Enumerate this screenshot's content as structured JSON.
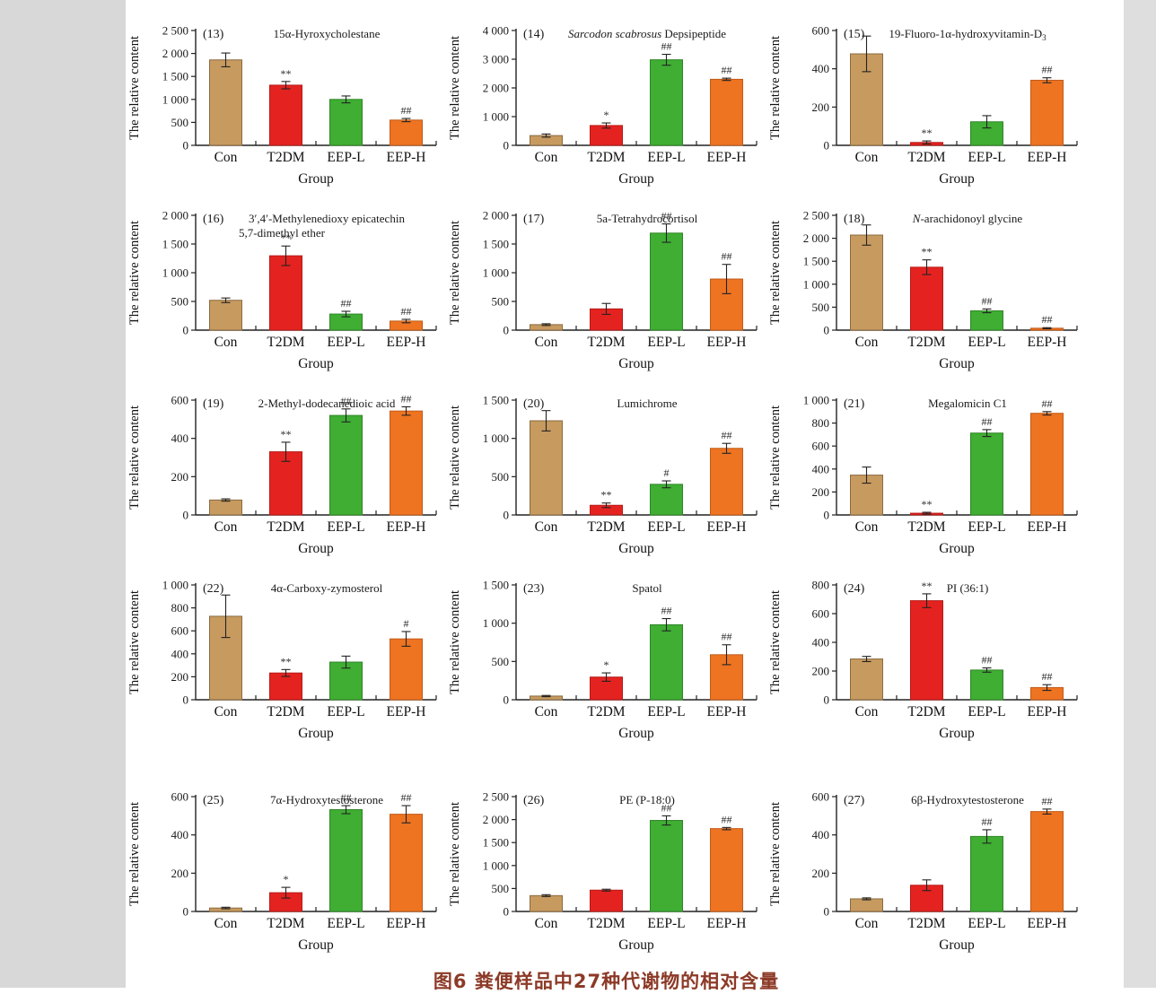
{
  "page": {
    "caption": "图6  粪便样品中27种代谢物的相对含量",
    "caption_color": "#8c3a27",
    "background": "#ffffff"
  },
  "shared": {
    "ylabel": "The relative content",
    "xlabel": "Group",
    "categories": [
      "Con",
      "T2DM",
      "EEP-L",
      "EEP-H"
    ],
    "bar_colors": [
      "#C79A5F",
      "#E42320",
      "#3FAE33",
      "#EE7422"
    ],
    "bar_borders": [
      "#8a6b40",
      "#b51a16",
      "#2f8526",
      "#c05a18"
    ],
    "axis_color": "#222222",
    "grid": "off",
    "legend": "none",
    "error_bars": true,
    "significance_note": "* ** vs Con, # ## vs T2DM"
  },
  "chart_data": [
    {
      "type": "bar",
      "panel": "(13)",
      "title_text": "15α-Hyroxycholestane",
      "title_segments": [
        {
          "t": "15α-Hyroxycholestane"
        }
      ],
      "ylim": [
        0,
        2500
      ],
      "ytick_step": 500,
      "values": [
        1860,
        1310,
        1000,
        550
      ],
      "errors": [
        150,
        80,
        75,
        35
      ],
      "sig_markers": [
        "",
        "**",
        "",
        "##"
      ]
    },
    {
      "type": "bar",
      "panel": "(14)",
      "title_text": "Sarcodon scabrosus Depsipeptide",
      "title_segments": [
        {
          "t": "Sarcodon scabrosus",
          "i": true
        },
        {
          "t": " Depsipeptide"
        }
      ],
      "ylim": [
        0,
        4000
      ],
      "ytick_step": 1000,
      "values": [
        340,
        690,
        2980,
        2300
      ],
      "errors": [
        55,
        90,
        190,
        40
      ],
      "sig_markers": [
        "",
        "*",
        "##",
        "##"
      ]
    },
    {
      "type": "bar",
      "panel": "(15)",
      "title_text": "19-Fluoro-1α-hydroxyvitamin-D3",
      "title_segments": [
        {
          "t": "19-Fluoro-1α-hydroxyvitamin-D"
        },
        {
          "t": "3",
          "sub": true
        }
      ],
      "ylim": [
        0,
        600
      ],
      "ytick_step": 200,
      "values": [
        478,
        15,
        123,
        340
      ],
      "errors": [
        93,
        8,
        32,
        13
      ],
      "sig_markers": [
        "",
        "**",
        "",
        "##"
      ]
    },
    {
      "type": "bar",
      "panel": "(16)",
      "title_text": "3′,4′-Methylenedioxy epicatechin 5,7-dimethyl ether",
      "title_segments": [
        {
          "t": "3′,4′-Methylenedioxy epicatechin"
        }
      ],
      "title_text2": "5,7-dimethyl ether",
      "ylim": [
        0,
        2000
      ],
      "ytick_step": 500,
      "values": [
        520,
        1295,
        280,
        158
      ],
      "errors": [
        40,
        170,
        48,
        30
      ],
      "sig_markers": [
        "",
        "**",
        "##",
        "##"
      ]
    },
    {
      "type": "bar",
      "panel": "(17)",
      "title_text": "5a-Tetrahydrocortisol",
      "title_segments": [
        {
          "t": "5a-Tetrahydrocortisol"
        }
      ],
      "ylim": [
        0,
        2000
      ],
      "ytick_step": 500,
      "values": [
        96,
        370,
        1690,
        890
      ],
      "errors": [
        15,
        95,
        160,
        255
      ],
      "sig_markers": [
        "",
        "",
        "##",
        "##"
      ]
    },
    {
      "type": "bar",
      "panel": "(18)",
      "title_text": "N-arachidonoyl glycine",
      "title_segments": [
        {
          "t": "N",
          "i": true
        },
        {
          "t": "-arachidonoyl glycine"
        }
      ],
      "ylim": [
        0,
        2500
      ],
      "ytick_step": 500,
      "values": [
        2070,
        1370,
        420,
        42
      ],
      "errors": [
        220,
        160,
        40,
        12
      ],
      "sig_markers": [
        "",
        "**",
        "##",
        "##"
      ]
    },
    {
      "type": "bar",
      "panel": "(19)",
      "title_text": "2-Methyl-dodecanedioic acid",
      "title_segments": [
        {
          "t": "2-Methyl-dodecanedioic acid"
        }
      ],
      "ylim": [
        0,
        600
      ],
      "ytick_step": 200,
      "values": [
        78,
        330,
        520,
        543
      ],
      "errors": [
        6,
        50,
        34,
        22
      ],
      "sig_markers": [
        "",
        "**",
        "##",
        "##"
      ]
    },
    {
      "type": "bar",
      "panel": "(20)",
      "title_text": "Lumichrome",
      "title_segments": [
        {
          "t": "Lumichrome"
        }
      ],
      "ylim": [
        0,
        1500
      ],
      "ytick_step": 500,
      "values": [
        1230,
        126,
        400,
        870
      ],
      "errors": [
        133,
        30,
        45,
        65
      ],
      "sig_markers": [
        "",
        "**",
        "#",
        "##"
      ]
    },
    {
      "type": "bar",
      "panel": "(21)",
      "title_text": "Megalomicin C1",
      "title_segments": [
        {
          "t": "Megalomicin C1"
        }
      ],
      "ylim": [
        0,
        1000
      ],
      "ytick_step": 200,
      "values": [
        347,
        15,
        713,
        885
      ],
      "errors": [
        70,
        8,
        30,
        15
      ],
      "sig_markers": [
        "",
        "**",
        "##",
        "##"
      ]
    },
    {
      "type": "bar",
      "panel": "(22)",
      "title_text": "4α-Carboxy-zymosterol",
      "title_segments": [
        {
          "t": "4α-Carboxy-zymosterol"
        }
      ],
      "ylim": [
        0,
        1000
      ],
      "ytick_step": 200,
      "values": [
        727,
        233,
        328,
        530
      ],
      "errors": [
        185,
        30,
        52,
        64
      ],
      "sig_markers": [
        "",
        "**",
        "",
        "#"
      ]
    },
    {
      "type": "bar",
      "panel": "(23)",
      "title_text": "Spatol",
      "title_segments": [
        {
          "t": "Spatol"
        }
      ],
      "ylim": [
        0,
        1500
      ],
      "ytick_step": 500,
      "values": [
        48,
        296,
        980,
        588
      ],
      "errors": [
        8,
        55,
        80,
        130
      ],
      "sig_markers": [
        "",
        "*",
        "##",
        "##"
      ]
    },
    {
      "type": "bar",
      "panel": "(24)",
      "title_text": "PI (36:1)",
      "title_segments": [
        {
          "t": "PI (36:1)"
        }
      ],
      "ylim": [
        0,
        800
      ],
      "ytick_step": 200,
      "values": [
        284,
        690,
        207,
        85
      ],
      "errors": [
        18,
        48,
        15,
        20
      ],
      "sig_markers": [
        "",
        "**",
        "##",
        "##"
      ]
    },
    {
      "type": "bar",
      "panel": "(25)",
      "title_text": "7α-Hydroxytestosterone",
      "title_segments": [
        {
          "t": "7α-Hydroxytestosterone"
        }
      ],
      "ylim": [
        0,
        600
      ],
      "ytick_step": 200,
      "values": [
        18,
        98,
        532,
        508
      ],
      "errors": [
        4,
        28,
        21,
        45
      ],
      "sig_markers": [
        "",
        "*",
        "##",
        "##"
      ]
    },
    {
      "type": "bar",
      "panel": "(26)",
      "title_text": "PE (P-18:0)",
      "title_segments": [
        {
          "t": "PE (P-18:0)"
        }
      ],
      "ylim": [
        0,
        2500
      ],
      "ytick_step": 500,
      "values": [
        345,
        464,
        1982,
        1804
      ],
      "errors": [
        20,
        20,
        100,
        25
      ],
      "sig_markers": [
        "",
        "",
        "##",
        "##"
      ]
    },
    {
      "type": "bar",
      "panel": "(27)",
      "title_text": "6β-Hydroxytestosterone",
      "title_segments": [
        {
          "t": "6β-Hydroxytestosterone"
        }
      ],
      "ylim": [
        0,
        600
      ],
      "ytick_step": 200,
      "values": [
        66,
        137,
        392,
        522
      ],
      "errors": [
        5,
        28,
        35,
        13
      ],
      "sig_markers": [
        "",
        "",
        "##",
        "##"
      ]
    }
  ]
}
